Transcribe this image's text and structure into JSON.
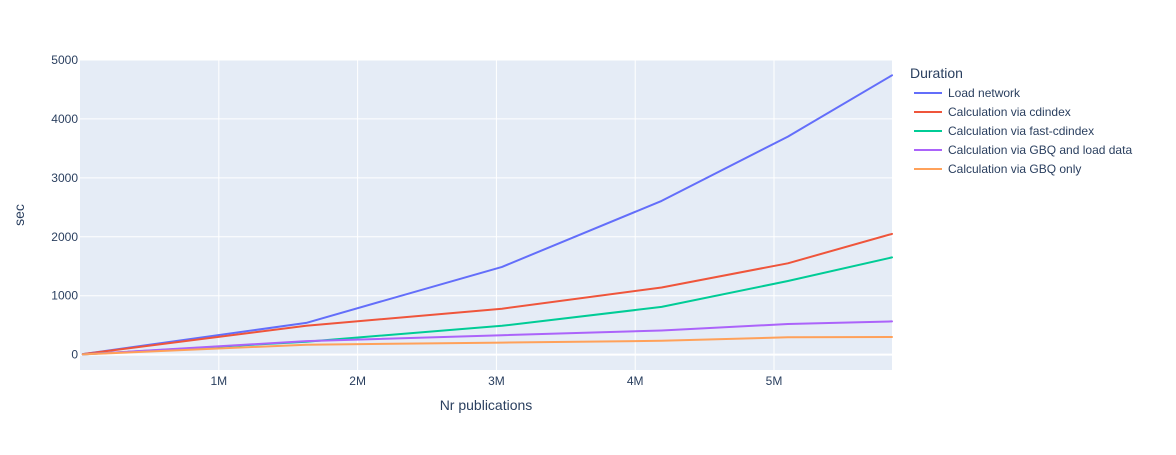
{
  "chart_data": {
    "type": "line",
    "title": "",
    "xlabel": "Nr publications",
    "ylabel": "sec",
    "xlim": [
      0,
      5850000
    ],
    "ylim": [
      -260,
      5000
    ],
    "grid": true,
    "legend_position": "right",
    "legend_title": "Duration",
    "x_ticks": [
      {
        "value": 1000000,
        "label": "1M"
      },
      {
        "value": 2000000,
        "label": "2M"
      },
      {
        "value": 3000000,
        "label": "3M"
      },
      {
        "value": 4000000,
        "label": "4M"
      },
      {
        "value": 5000000,
        "label": "5M"
      }
    ],
    "y_ticks": [
      {
        "value": 0,
        "label": "0"
      },
      {
        "value": 1000,
        "label": "1000"
      },
      {
        "value": 2000,
        "label": "2000"
      },
      {
        "value": 3000,
        "label": "3000"
      },
      {
        "value": 4000,
        "label": "4000"
      },
      {
        "value": 5000,
        "label": "5000"
      }
    ],
    "x": [
      20000,
      1630000,
      3040000,
      4190000,
      5100000,
      5850000
    ],
    "series": [
      {
        "name": "Load network",
        "color": "#636efa",
        "values": [
          10,
          540,
          1490,
          2610,
          3700,
          4740
        ]
      },
      {
        "name": "Calculation via cdindex",
        "color": "#ef553b",
        "values": [
          10,
          490,
          780,
          1140,
          1550,
          2050
        ]
      },
      {
        "name": "Calculation via fast-cdindex",
        "color": "#00cc96",
        "values": [
          5,
          220,
          490,
          810,
          1250,
          1650
        ]
      },
      {
        "name": "Calculation via GBQ and load data",
        "color": "#ab63fa",
        "values": [
          5,
          230,
          330,
          410,
          520,
          565
        ]
      },
      {
        "name": "Calculation via GBQ only",
        "color": "#ffa15a",
        "values": [
          5,
          170,
          205,
          235,
          295,
          300
        ]
      }
    ]
  }
}
